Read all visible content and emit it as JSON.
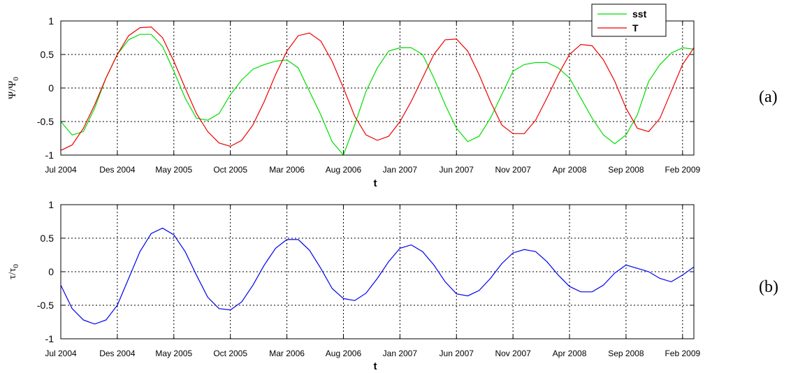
{
  "panel_labels": [
    "(a)",
    "(b)"
  ],
  "chart_data": [
    {
      "type": "line",
      "panel": "(a)",
      "xlabel": "t",
      "ylabel": "Ψ/Ψ",
      "ylabel_sub": "0",
      "ylim": [
        -1,
        1
      ],
      "yticks": [
        -1,
        -0.5,
        0,
        0.5,
        1
      ],
      "ytick_labels": [
        "-1",
        "-0.5",
        "0",
        "0.5",
        "1"
      ],
      "xlim": [
        0,
        56
      ],
      "xticks": [
        0,
        5,
        10,
        15,
        20,
        25,
        30,
        35,
        40,
        45,
        50,
        55
      ],
      "xtick_labels": [
        "Jul 2004",
        "Des 2004",
        "May 2005",
        "Oct 2005",
        "Mar 2006",
        "Aug 2006",
        "Jan 2007",
        "Jun 2007",
        "Nov 2007",
        "Apr 2008",
        "Sep 2008",
        "Feb 2009"
      ],
      "grid": true,
      "legend_position": "top-right",
      "series": [
        {
          "name": "sst",
          "color": "#00dd00",
          "x": [
            0,
            1,
            2,
            3,
            4,
            5,
            6,
            7,
            8,
            9,
            10,
            11,
            12,
            13,
            14,
            15,
            16,
            17,
            18,
            19,
            20,
            21,
            22,
            23,
            24,
            25,
            26,
            27,
            28,
            29,
            30,
            31,
            32,
            33,
            34,
            35,
            36,
            37,
            38,
            39,
            40,
            41,
            42,
            43,
            44,
            45,
            46,
            47,
            48,
            49,
            50,
            51,
            52,
            53,
            54,
            55,
            56
          ],
          "values": [
            -0.5,
            -0.7,
            -0.65,
            -0.3,
            0.15,
            0.5,
            0.72,
            0.8,
            0.8,
            0.62,
            0.25,
            -0.15,
            -0.45,
            -0.48,
            -0.38,
            -0.1,
            0.12,
            0.28,
            0.35,
            0.4,
            0.42,
            0.3,
            -0.05,
            -0.4,
            -0.8,
            -1.0,
            -0.55,
            -0.05,
            0.3,
            0.55,
            0.6,
            0.6,
            0.5,
            0.15,
            -0.25,
            -0.6,
            -0.8,
            -0.72,
            -0.45,
            -0.1,
            0.25,
            0.35,
            0.38,
            0.38,
            0.3,
            0.15,
            -0.15,
            -0.45,
            -0.7,
            -0.83,
            -0.7,
            -0.4,
            0.1,
            0.35,
            0.52,
            0.6,
            0.58
          ]
        },
        {
          "name": "T",
          "color": "#ee0000",
          "x": [
            0,
            1,
            2,
            3,
            4,
            5,
            6,
            7,
            8,
            9,
            10,
            11,
            12,
            13,
            14,
            15,
            16,
            17,
            18,
            19,
            20,
            21,
            22,
            23,
            24,
            25,
            26,
            27,
            28,
            29,
            30,
            31,
            32,
            33,
            34,
            35,
            36,
            37,
            38,
            39,
            40,
            41,
            42,
            43,
            44,
            45,
            46,
            47,
            48,
            49,
            50,
            51,
            52,
            53,
            54,
            55,
            56
          ],
          "values": [
            -0.93,
            -0.85,
            -0.6,
            -0.25,
            0.15,
            0.5,
            0.78,
            0.9,
            0.91,
            0.75,
            0.4,
            0.0,
            -0.38,
            -0.65,
            -0.82,
            -0.87,
            -0.78,
            -0.55,
            -0.2,
            0.2,
            0.55,
            0.78,
            0.82,
            0.7,
            0.4,
            0.0,
            -0.42,
            -0.7,
            -0.78,
            -0.72,
            -0.5,
            -0.2,
            0.15,
            0.5,
            0.72,
            0.73,
            0.55,
            0.2,
            -0.2,
            -0.55,
            -0.68,
            -0.68,
            -0.48,
            -0.15,
            0.2,
            0.5,
            0.65,
            0.63,
            0.42,
            0.1,
            -0.3,
            -0.6,
            -0.65,
            -0.45,
            -0.05,
            0.35,
            0.6
          ]
        }
      ]
    },
    {
      "type": "line",
      "panel": "(b)",
      "xlabel": "t",
      "ylabel": "τ/τ",
      "ylabel_sub": "0",
      "ylim": [
        -1,
        1
      ],
      "yticks": [
        -1,
        -0.5,
        0,
        0.5,
        1
      ],
      "ytick_labels": [
        "-1",
        "-0.5",
        "0",
        "0.5",
        "1"
      ],
      "xlim": [
        0,
        56
      ],
      "xticks": [
        0,
        5,
        10,
        15,
        20,
        25,
        30,
        35,
        40,
        45,
        50,
        55
      ],
      "xtick_labels": [
        "Jul 2004",
        "Des 2004",
        "May 2005",
        "Oct 2005",
        "Mar 2006",
        "Aug 2006",
        "Jan 2007",
        "Jun 2007",
        "Nov 2007",
        "Apr 2008",
        "Sep 2008",
        "Feb 2009"
      ],
      "grid": true,
      "series": [
        {
          "color": "#0000ee",
          "x": [
            0,
            1,
            2,
            3,
            4,
            5,
            6,
            7,
            8,
            9,
            10,
            11,
            12,
            13,
            14,
            15,
            16,
            17,
            18,
            19,
            20,
            21,
            22,
            23,
            24,
            25,
            26,
            27,
            28,
            29,
            30,
            31,
            32,
            33,
            34,
            35,
            36,
            37,
            38,
            39,
            40,
            41,
            42,
            43,
            44,
            45,
            46,
            47,
            48,
            49,
            50,
            51,
            52,
            53,
            54,
            55,
            56
          ],
          "values": [
            -0.2,
            -0.55,
            -0.72,
            -0.78,
            -0.72,
            -0.5,
            -0.1,
            0.3,
            0.57,
            0.65,
            0.55,
            0.3,
            -0.05,
            -0.38,
            -0.55,
            -0.57,
            -0.45,
            -0.2,
            0.1,
            0.35,
            0.48,
            0.48,
            0.32,
            0.05,
            -0.25,
            -0.4,
            -0.43,
            -0.32,
            -0.1,
            0.15,
            0.35,
            0.4,
            0.3,
            0.1,
            -0.15,
            -0.33,
            -0.36,
            -0.28,
            -0.1,
            0.12,
            0.28,
            0.33,
            0.3,
            0.15,
            -0.05,
            -0.22,
            -0.3,
            -0.3,
            -0.2,
            -0.02,
            0.1,
            0.05,
            0.0,
            -0.1,
            -0.15,
            -0.05,
            0.07
          ]
        }
      ]
    }
  ]
}
